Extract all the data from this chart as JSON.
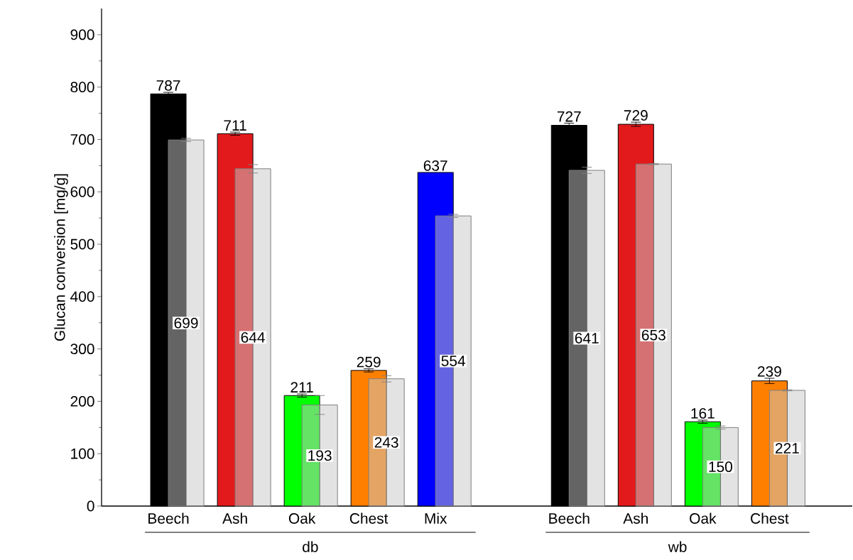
{
  "chart_data": {
    "type": "bar",
    "ylabel": "Glucan conversion [mg/g]",
    "categories": [
      "Beech",
      "Ash",
      "Oak",
      "Chest",
      "Mix",
      null,
      "Beech",
      "Ash",
      "Oak",
      "Chest"
    ],
    "series": [
      {
        "colors": [
          "#000000",
          "#e31a1c",
          "#00ff00",
          "#ff8000",
          "#0000ff",
          null,
          "#000000",
          "#e31a1c",
          "#00ff00",
          "#ff8000"
        ],
        "values": [
          787,
          711,
          211,
          259,
          637,
          null,
          727,
          729,
          161,
          239
        ],
        "errors": [
          3,
          3,
          3,
          3,
          null,
          null,
          4,
          4,
          3,
          5
        ]
      },
      {
        "color": "#c8c8c8",
        "values": [
          699,
          644,
          193,
          243,
          554,
          null,
          641,
          653,
          150,
          221
        ],
        "errors": [
          3,
          8,
          18,
          6,
          3,
          null,
          6,
          1,
          3,
          1
        ]
      }
    ],
    "annotations": [
      "db",
      "wb"
    ],
    "ylim": [
      0,
      950
    ],
    "yticks": [
      0,
      100,
      200,
      300,
      400,
      500,
      600,
      700,
      800,
      900
    ],
    "data_labels": true
  }
}
